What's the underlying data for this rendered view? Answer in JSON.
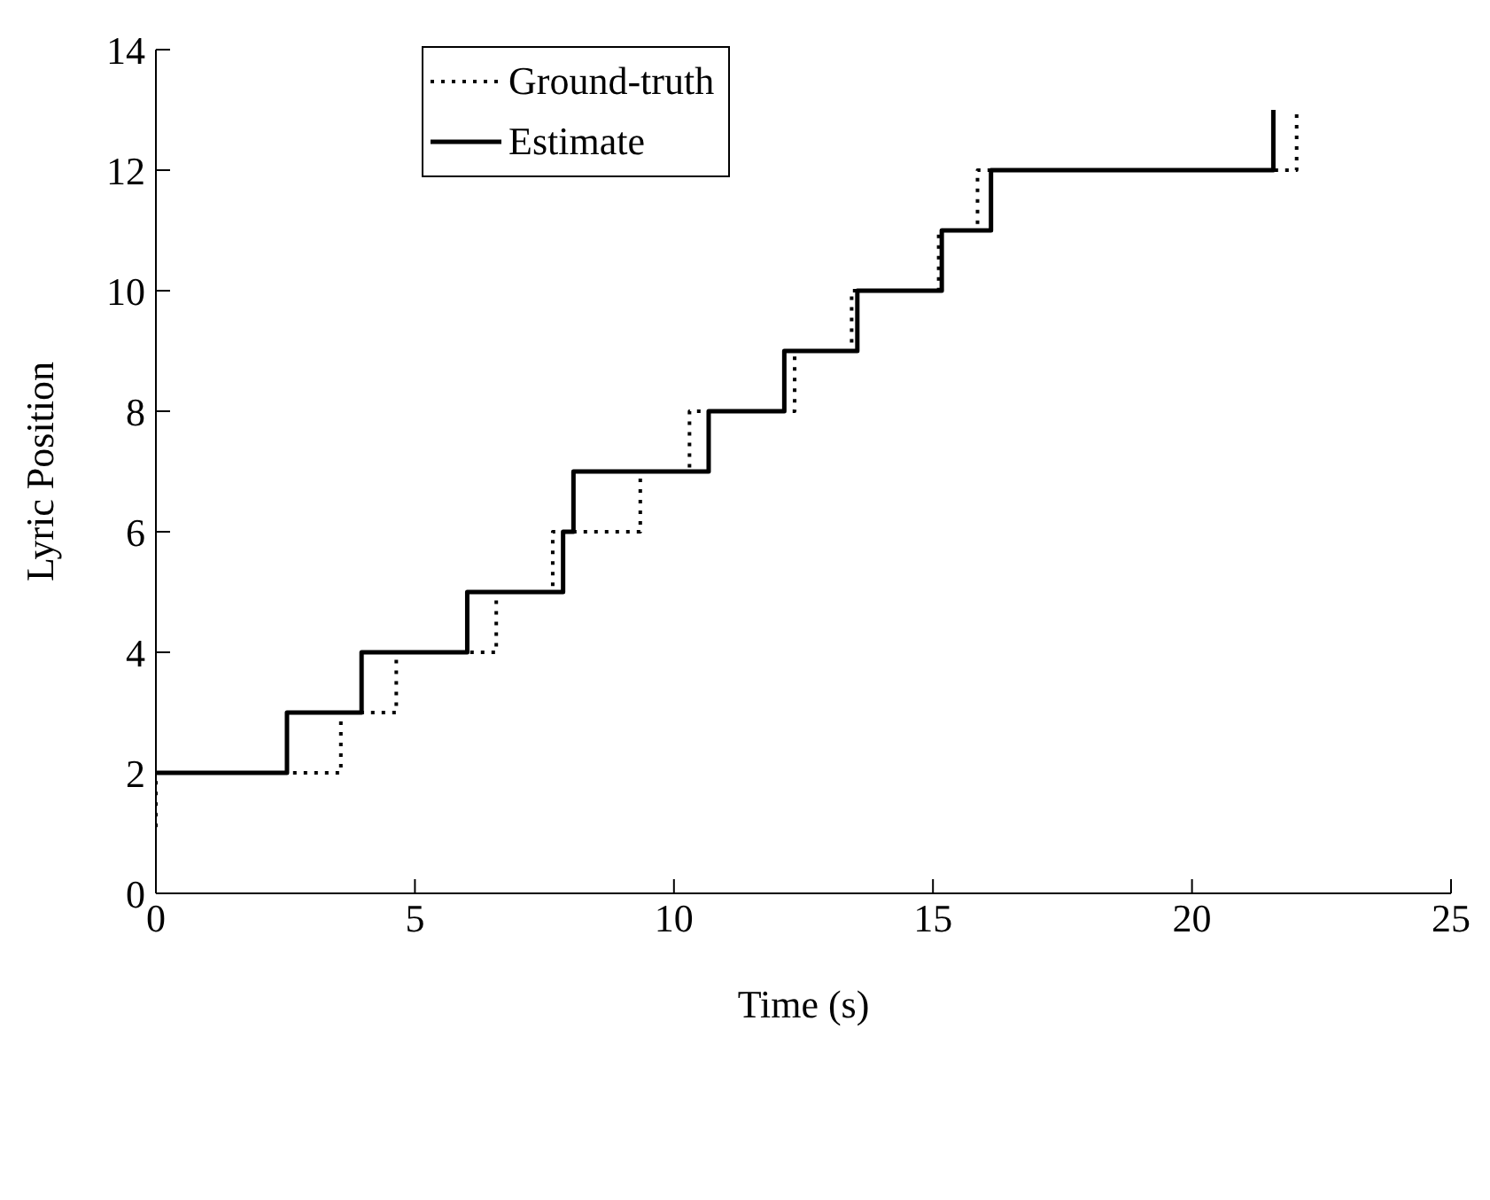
{
  "chart_data": {
    "type": "step",
    "xlabel": "Time (s)",
    "ylabel": "Lyric Position",
    "xlim": [
      0,
      25
    ],
    "xticks": [
      0,
      5,
      10,
      15,
      20,
      25
    ],
    "ylim": [
      0,
      14
    ],
    "yticks": [
      0,
      2,
      4,
      6,
      8,
      10,
      12,
      14
    ],
    "grid": false,
    "legend": "top",
    "marker": "none",
    "series": [
      {
        "name": "Ground-truth",
        "color": "#000000",
        "line_style": "dotted",
        "x": [
          0,
          0,
          3.57,
          4.64,
          6.57,
          7.66,
          9.35,
          10.3,
          12.33,
          13.43,
          15.11,
          15.86,
          22.02
        ],
        "values": [
          1.1,
          2,
          3,
          4,
          5,
          6,
          7,
          8,
          9,
          10,
          11,
          12,
          13
        ]
      },
      {
        "name": "Estimate",
        "color": "#000000",
        "line_style": "solid",
        "x": [
          0,
          2.53,
          3.97,
          6.01,
          7.86,
          8.06,
          10.67,
          12.13,
          13.54,
          15.17,
          16.12,
          21.57
        ],
        "values": [
          2,
          3,
          4,
          5,
          6,
          7,
          8,
          9,
          10,
          11,
          12,
          13
        ]
      }
    ]
  }
}
